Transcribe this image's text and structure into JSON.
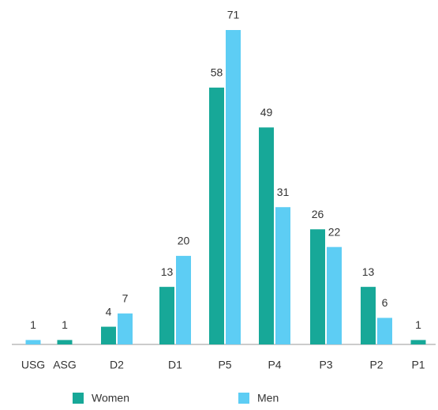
{
  "chart_data": {
    "type": "bar",
    "categories": [
      "USG",
      "ASG",
      "D2",
      "D1",
      "P5",
      "P4",
      "P3",
      "P2",
      "P1"
    ],
    "series": [
      {
        "name": "Women",
        "color": "#17a898",
        "values": [
          null,
          1,
          4,
          13,
          58,
          49,
          26,
          13,
          1
        ]
      },
      {
        "name": "Men",
        "color": "#5dcdf4",
        "values": [
          1,
          null,
          7,
          20,
          71,
          31,
          22,
          6,
          null
        ]
      }
    ],
    "legend": "bottom"
  }
}
